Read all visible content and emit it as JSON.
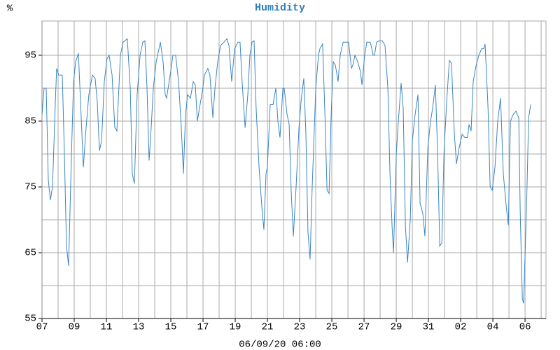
{
  "chart_data": {
    "type": "line",
    "title": "Humidity",
    "y_unit": "%",
    "xlabel": "06/09/20 06:00",
    "color": "#3a85c4",
    "grid": true,
    "ylim": [
      55,
      100
    ],
    "yticks": [
      55,
      65,
      75,
      85,
      95
    ],
    "minor_yticks": [
      60,
      70,
      80,
      90
    ],
    "xlim": [
      0,
      31.3
    ],
    "xticks": [
      {
        "value": 0,
        "label": "07"
      },
      {
        "value": 2,
        "label": "09"
      },
      {
        "value": 4,
        "label": "11"
      },
      {
        "value": 6,
        "label": "13"
      },
      {
        "value": 8,
        "label": "15"
      },
      {
        "value": 10,
        "label": "17"
      },
      {
        "value": 12,
        "label": "19"
      },
      {
        "value": 14,
        "label": "21"
      },
      {
        "value": 16,
        "label": "23"
      },
      {
        "value": 18,
        "label": "25"
      },
      {
        "value": 20,
        "label": "27"
      },
      {
        "value": 22,
        "label": "29"
      },
      {
        "value": 24,
        "label": "31"
      },
      {
        "value": 26,
        "label": "02"
      },
      {
        "value": 28,
        "label": "04"
      },
      {
        "value": 30,
        "label": "06"
      }
    ],
    "minor_xticks": [
      1,
      3,
      5,
      7,
      9,
      11,
      13,
      15,
      17,
      19,
      21,
      23,
      25,
      27,
      29,
      31
    ],
    "x": [
      0,
      0.13,
      0.26,
      0.39,
      0.52,
      0.65,
      0.83,
      0.91,
      1.04,
      1.26,
      1.39,
      1.52,
      1.65,
      1.83,
      1.96,
      2.09,
      2.26,
      2.39,
      2.57,
      2.74,
      2.91,
      3.13,
      3.3,
      3.43,
      3.57,
      3.7,
      3.87,
      4.04,
      4.17,
      4.35,
      4.52,
      4.65,
      4.87,
      5.04,
      5.3,
      5.48,
      5.61,
      5.74,
      5.91,
      6.09,
      6.26,
      6.39,
      6.52,
      6.65,
      6.78,
      6.91,
      7.09,
      7.35,
      7.52,
      7.65,
      7.74,
      7.96,
      8.13,
      8.3,
      8.48,
      8.65,
      8.78,
      8.91,
      9.04,
      9.22,
      9.39,
      9.52,
      9.65,
      9.78,
      9.96,
      10.09,
      10.3,
      10.43,
      10.61,
      10.74,
      10.91,
      11.09,
      11.3,
      11.48,
      11.61,
      11.78,
      11.96,
      12.17,
      12.3,
      12.43,
      12.61,
      12.78,
      12.91,
      13.04,
      13.17,
      13.3,
      13.48,
      13.65,
      13.78,
      13.91,
      14.0,
      14.17,
      14.35,
      14.52,
      14.65,
      14.78,
      14.96,
      15.04,
      15.22,
      15.35,
      15.48,
      15.61,
      15.78,
      15.96,
      16.09,
      16.26,
      16.39,
      16.52,
      16.65,
      16.78,
      17.0,
      17.17,
      17.26,
      17.43,
      17.57,
      17.7,
      17.83,
      17.96,
      18.09,
      18.22,
      18.39,
      18.52,
      18.7,
      18.87,
      19.04,
      19.22,
      19.3,
      19.43,
      19.61,
      19.78,
      19.87,
      20.04,
      20.17,
      20.39,
      20.57,
      20.65,
      20.78,
      20.96,
      21.13,
      21.3,
      21.48,
      21.61,
      21.74,
      21.83,
      22.0,
      22.13,
      22.3,
      22.43,
      22.57,
      22.7,
      22.87,
      23.0,
      23.17,
      23.35,
      23.48,
      23.65,
      23.78,
      23.96,
      24.13,
      24.26,
      24.43,
      24.57,
      24.7,
      24.83,
      24.96,
      25.13,
      25.3,
      25.43,
      25.61,
      25.74,
      25.91,
      26.09,
      26.26,
      26.43,
      26.52,
      26.65,
      26.78,
      26.96,
      27.13,
      27.3,
      27.43,
      27.52,
      27.7,
      27.83,
      27.96,
      28.13,
      28.3,
      28.48,
      28.65,
      28.83,
      28.96,
      29.09,
      29.26,
      29.43,
      29.61,
      29.7,
      29.83,
      29.91,
      30.09,
      30.22,
      30.35
    ],
    "values": [
      86,
      90,
      90,
      76,
      73,
      75,
      88,
      93,
      92,
      92,
      80,
      66,
      63,
      80,
      91,
      94,
      95.3,
      88,
      78,
      84,
      89,
      92,
      91.5,
      88,
      80.5,
      82,
      91,
      94.5,
      95,
      92,
      84,
      83.5,
      95,
      97,
      97.5,
      90,
      77,
      75.5,
      89,
      95,
      97,
      97.2,
      90,
      79,
      84,
      90,
      94,
      97,
      94,
      89,
      88.5,
      92,
      95,
      95,
      91,
      84,
      77,
      86,
      89,
      88.5,
      91,
      90.5,
      85,
      87,
      89.5,
      92,
      93,
      92,
      85.5,
      90,
      94,
      96.5,
      97,
      97.5,
      96.5,
      91,
      96,
      97,
      97,
      91,
      84,
      89,
      95,
      97,
      97.2,
      87,
      78,
      72,
      68.5,
      77,
      78,
      87.5,
      87.5,
      90,
      85,
      82.5,
      90,
      90,
      86,
      84.5,
      74,
      67.5,
      75,
      84,
      88,
      91.5,
      83,
      68,
      64,
      75,
      90,
      95,
      96,
      96.7,
      86,
      74.5,
      74,
      86,
      94,
      93.5,
      91,
      95,
      97,
      97,
      97,
      93,
      93.5,
      95,
      94,
      92.5,
      90.5,
      95,
      97,
      97,
      95,
      95,
      97,
      97.2,
      97.2,
      96.5,
      90,
      77,
      69,
      65,
      80,
      85,
      90.8,
      87,
      69,
      63.5,
      70,
      82,
      86,
      89,
      72.5,
      71,
      67.5,
      81,
      85,
      87,
      90.5,
      80,
      66,
      66.5,
      80,
      88,
      94.2,
      93.8,
      83,
      78.5,
      81,
      83,
      82.5,
      82.5,
      84.5,
      83.5,
      91,
      93.5,
      95,
      96,
      96,
      96.7,
      87,
      75,
      74.5,
      78,
      85,
      88.5,
      77,
      72,
      69.2,
      85,
      86,
      86.5,
      85.5,
      71,
      58,
      57.3,
      72,
      85.5,
      87.5
    ]
  }
}
